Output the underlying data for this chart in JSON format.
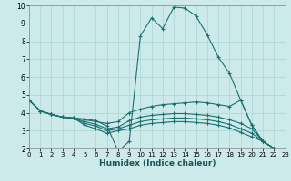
{
  "xlabel": "Humidex (Indice chaleur)",
  "xlim": [
    0,
    23
  ],
  "ylim": [
    2,
    10
  ],
  "xticks": [
    0,
    1,
    2,
    3,
    4,
    5,
    6,
    7,
    8,
    9,
    10,
    11,
    12,
    13,
    14,
    15,
    16,
    17,
    18,
    19,
    20,
    21,
    22,
    23
  ],
  "yticks": [
    2,
    3,
    4,
    5,
    6,
    7,
    8,
    9,
    10
  ],
  "bg_color": "#cdeaea",
  "line_color": "#1a7070",
  "grid_color": "#b0d8d8",
  "lines": [
    {
      "x": [
        0,
        1,
        2,
        3,
        4,
        5,
        6,
        7,
        8,
        9,
        10,
        11,
        12,
        13,
        14,
        15,
        16,
        17,
        18,
        19,
        20,
        21,
        22,
        23
      ],
      "y": [
        4.7,
        4.1,
        3.9,
        3.75,
        3.7,
        3.65,
        3.55,
        3.25,
        1.85,
        2.4,
        8.3,
        9.3,
        8.7,
        9.9,
        9.85,
        9.4,
        8.35,
        7.1,
        6.2,
        4.7,
        3.3,
        2.4,
        2.0,
        1.95
      ]
    },
    {
      "x": [
        0,
        1,
        2,
        3,
        4,
        5,
        6,
        7,
        8,
        9,
        10,
        11,
        12,
        13,
        14,
        15,
        16,
        17,
        18,
        19,
        20,
        21,
        22,
        23
      ],
      "y": [
        4.7,
        4.1,
        3.9,
        3.75,
        3.7,
        3.6,
        3.5,
        3.4,
        3.5,
        4.0,
        4.2,
        4.35,
        4.45,
        4.5,
        4.55,
        4.6,
        4.55,
        4.45,
        4.35,
        4.7,
        3.3,
        2.4,
        2.0,
        1.95
      ]
    },
    {
      "x": [
        0,
        1,
        2,
        3,
        4,
        5,
        6,
        7,
        8,
        9,
        10,
        11,
        12,
        13,
        14,
        15,
        16,
        17,
        18,
        19,
        20,
        21,
        22,
        23
      ],
      "y": [
        4.7,
        4.1,
        3.9,
        3.75,
        3.7,
        3.5,
        3.35,
        3.1,
        3.2,
        3.55,
        3.75,
        3.85,
        3.9,
        3.95,
        3.95,
        3.9,
        3.85,
        3.75,
        3.6,
        3.4,
        3.1,
        2.4,
        2.0,
        1.95
      ]
    },
    {
      "x": [
        0,
        1,
        2,
        3,
        4,
        5,
        6,
        7,
        8,
        9,
        10,
        11,
        12,
        13,
        14,
        15,
        16,
        17,
        18,
        19,
        20,
        21,
        22,
        23
      ],
      "y": [
        4.7,
        4.1,
        3.9,
        3.75,
        3.7,
        3.4,
        3.25,
        3.0,
        3.1,
        3.3,
        3.5,
        3.6,
        3.65,
        3.7,
        3.7,
        3.65,
        3.6,
        3.5,
        3.35,
        3.1,
        2.85,
        2.4,
        2.0,
        1.95
      ]
    },
    {
      "x": [
        0,
        1,
        2,
        3,
        4,
        5,
        6,
        7,
        8,
        9,
        10,
        11,
        12,
        13,
        14,
        15,
        16,
        17,
        18,
        19,
        20,
        21,
        22,
        23
      ],
      "y": [
        4.7,
        4.1,
        3.9,
        3.75,
        3.7,
        3.3,
        3.1,
        2.85,
        3.0,
        3.1,
        3.3,
        3.4,
        3.45,
        3.5,
        3.5,
        3.45,
        3.4,
        3.3,
        3.15,
        2.9,
        2.65,
        2.4,
        2.0,
        1.95
      ]
    }
  ]
}
